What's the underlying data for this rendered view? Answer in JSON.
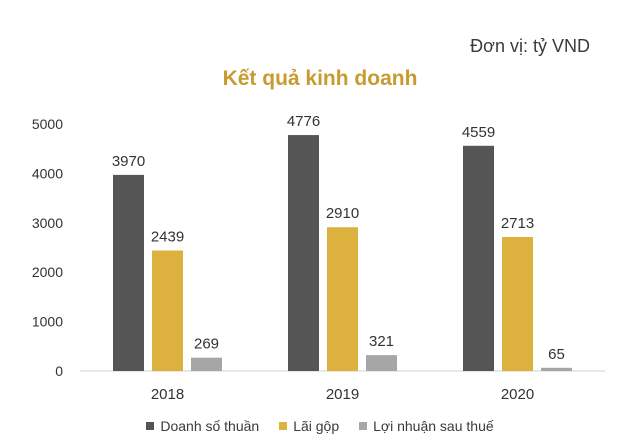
{
  "unit_label": "Đơn vị: tỷ VND",
  "chart_data": {
    "type": "bar",
    "title": "Kết quả kinh doanh",
    "categories": [
      "2018",
      "2019",
      "2020"
    ],
    "series": [
      {
        "name": "Doanh số thuần",
        "values": [
          3970,
          4776,
          4559
        ],
        "color": "#555555"
      },
      {
        "name": "Lãi gộp",
        "values": [
          2439,
          2910,
          2713
        ],
        "color": "#dcb13e"
      },
      {
        "name": "Lợi nhuận sau thuế",
        "values": [
          269,
          321,
          65
        ],
        "color": "#a6a6a6"
      }
    ],
    "yticks": [
      "0",
      "1000",
      "2000",
      "3000",
      "4000",
      "5000"
    ],
    "ylim": [
      0,
      5000
    ],
    "grid": false,
    "legend_position": "bottom"
  }
}
